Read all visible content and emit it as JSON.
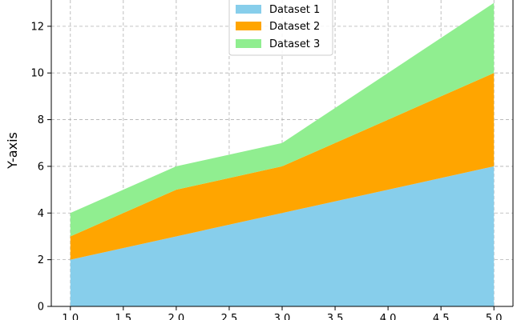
{
  "chart_data": {
    "type": "area",
    "stacked": true,
    "x": [
      1.0,
      2.0,
      3.0,
      4.0,
      5.0
    ],
    "series": [
      {
        "name": "Dataset 1",
        "values": [
          2,
          3,
          4,
          5,
          6
        ],
        "color": "#87ceeb"
      },
      {
        "name": "Dataset 2",
        "values": [
          1,
          2,
          2,
          3,
          4
        ],
        "color": "#ffa500"
      },
      {
        "name": "Dataset 3",
        "values": [
          1,
          1,
          1,
          2,
          3
        ],
        "color": "#90ee90"
      }
    ],
    "xlabel": "",
    "ylabel": "Y-axis",
    "xlim": [
      0.82,
      5.18
    ],
    "ylim": [
      0,
      13.4
    ],
    "xticks": [
      "1.0",
      "1.5",
      "2.0",
      "2.5",
      "3.0",
      "3.5",
      "4.0",
      "4.5",
      "5.0"
    ],
    "yticks": [
      "0",
      "2",
      "4",
      "6",
      "8",
      "10",
      "12"
    ],
    "grid": true,
    "legend_position": "top-center"
  }
}
